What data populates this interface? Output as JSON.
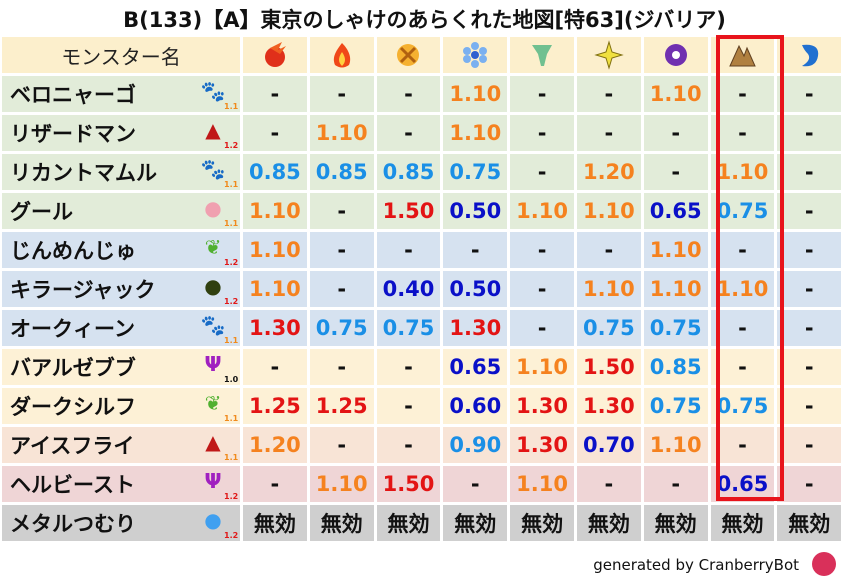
{
  "title": "B(133)【A】東京のしゃけのあらくれた地図[特63](ジバリア)",
  "header": {
    "name_label": "モンスター名",
    "elements": [
      "fire-ball",
      "flame",
      "cross-gold",
      "ice-flower",
      "wind-tornado",
      "light-star",
      "dark-pinwheel",
      "earth-rock",
      "water-wave"
    ],
    "highlighted_column": 7
  },
  "colors": {
    "red": "#e31414",
    "orange": "#f5821f",
    "lightblue": "#1a8fe6",
    "darkblue": "#0a10c8",
    "box": "#e8141b"
  },
  "rows": [
    {
      "name": "ベロニャーゴ",
      "family": "beast-paw",
      "level": "1.1",
      "level_color": "#f08a1c",
      "bg": "#e2ecd9",
      "values": [
        "-",
        "-",
        "-",
        "1.10",
        "-",
        "-",
        "1.10",
        "-",
        "-"
      ]
    },
    {
      "name": "リザードマン",
      "family": "dragon",
      "level": "1.2",
      "level_color": "#e01818",
      "bg": "#e2ecd9",
      "values": [
        "-",
        "1.10",
        "-",
        "1.10",
        "-",
        "-",
        "-",
        "-",
        "-"
      ]
    },
    {
      "name": "リカントマムル",
      "family": "beast-paw",
      "level": "1.1",
      "level_color": "#f08a1c",
      "bg": "#e2ecd9",
      "values": [
        "0.85",
        "0.85",
        "0.85",
        "0.75",
        "-",
        "1.20",
        "-",
        "1.10",
        "-"
      ]
    },
    {
      "name": "グール",
      "family": "undead-skull",
      "level": "1.1",
      "level_color": "#f08a1c",
      "bg": "#e2ecd9",
      "values": [
        "1.10",
        "-",
        "1.50",
        "0.50",
        "1.10",
        "1.10",
        "0.65",
        "0.75",
        "-"
      ]
    },
    {
      "name": "じんめんじゅ",
      "family": "plant-leaf",
      "level": "1.2",
      "level_color": "#e01818",
      "bg": "#d6e2f0",
      "values": [
        "1.10",
        "-",
        "-",
        "-",
        "-",
        "-",
        "1.10",
        "-",
        "-"
      ]
    },
    {
      "name": "キラージャック",
      "family": "material-ghost",
      "level": "1.2",
      "level_color": "#e01818",
      "bg": "#d6e2f0",
      "values": [
        "1.10",
        "-",
        "0.40",
        "0.50",
        "-",
        "1.10",
        "1.10",
        "1.10",
        "-"
      ]
    },
    {
      "name": "オークィーン",
      "family": "beast-paw",
      "level": "1.1",
      "level_color": "#f08a1c",
      "bg": "#d6e2f0",
      "values": [
        "1.30",
        "0.75",
        "0.75",
        "1.30",
        "-",
        "0.75",
        "0.75",
        "-",
        "-"
      ]
    },
    {
      "name": "バアルゼブブ",
      "family": "demon-trident",
      "level": "1.0",
      "level_color": "#111111",
      "bg": "#fdf1d6",
      "values": [
        "-",
        "-",
        "-",
        "0.65",
        "1.10",
        "1.50",
        "0.85",
        "-",
        "-"
      ]
    },
    {
      "name": "ダークシルフ",
      "family": "plant-leaf",
      "level": "1.1",
      "level_color": "#f08a1c",
      "bg": "#fdf1d6",
      "values": [
        "1.25",
        "1.25",
        "-",
        "0.60",
        "1.30",
        "1.30",
        "0.75",
        "0.75",
        "-"
      ]
    },
    {
      "name": "アイスフライ",
      "family": "dragon",
      "level": "1.1",
      "level_color": "#f08a1c",
      "bg": "#f8e4d6",
      "values": [
        "1.20",
        "-",
        "-",
        "0.90",
        "1.30",
        "0.70",
        "1.10",
        "-",
        "-"
      ]
    },
    {
      "name": "ヘルビースト",
      "family": "demon-trident",
      "level": "1.2",
      "level_color": "#e01818",
      "bg": "#efd5d6",
      "values": [
        "-",
        "1.10",
        "1.50",
        "-",
        "1.10",
        "-",
        "-",
        "0.65",
        "-"
      ]
    },
    {
      "name": "メタルつむり",
      "family": "slime",
      "level": "1.2",
      "level_color": "#e01818",
      "bg": "#cfcfcf",
      "values": [
        "無効",
        "無効",
        "無効",
        "無効",
        "無効",
        "無効",
        "無効",
        "無効",
        "無効"
      ]
    }
  ],
  "footer": {
    "text": "generated by CranberryBot",
    "icon": "cranberry-icon"
  }
}
